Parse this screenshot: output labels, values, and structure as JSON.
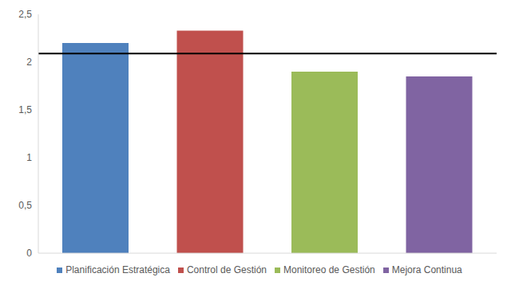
{
  "chart_data": {
    "type": "bar",
    "categories": [
      "Planificación Estratégica",
      "Control de Gestión",
      "Monitoreo de Gestión",
      "Mejora Continua"
    ],
    "values": [
      2.2,
      2.33,
      1.9,
      1.85
    ],
    "colors": [
      "#4f81bd",
      "#c0504d",
      "#9bbb59",
      "#8064a2"
    ],
    "ylim": [
      0,
      2.5
    ],
    "yticks": [
      0,
      {
        "value": 0.5,
        "label": "0,5"
      },
      1,
      {
        "value": 1.5,
        "label": "1,5"
      },
      2,
      {
        "value": 2.5,
        "label": "2,5"
      }
    ],
    "reference_line": 2.09,
    "grid": false,
    "tick_labels": "y",
    "legend": "bottom"
  }
}
